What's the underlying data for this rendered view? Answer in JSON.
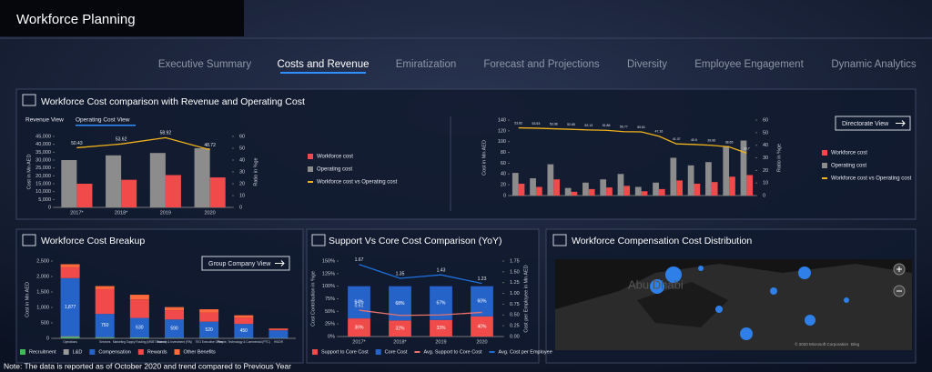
{
  "header": {
    "title": "Workforce Planning"
  },
  "tabs": {
    "items": [
      "Executive Summary",
      "Costs and Revenue",
      "Emiratization",
      "Forecast and Projections",
      "Diversity",
      "Employee Engagement",
      "Dynamic Analytics"
    ],
    "active": 1
  },
  "chart_data": [
    {
      "type": "combo",
      "title": "Workforce Cost comparison with Revenue and Operating Cost",
      "view_tabs": [
        "Revenue View",
        "Operating Cost View"
      ],
      "active_view": 1,
      "categories": [
        "2017*",
        "2018*",
        "2019",
        "2020"
      ],
      "y_label": "Cost in Mn AED",
      "y2_label": "Ratio in %ge",
      "ylim": [
        0,
        45000
      ],
      "yticks": [
        0,
        {
          "value": 5000,
          "label": "5,000"
        },
        {
          "value": 10000,
          "label": "10,000"
        },
        {
          "value": 15000,
          "label": "15,000"
        },
        {
          "value": 20000,
          "label": "20,000"
        },
        {
          "value": 25000,
          "label": "25,000"
        },
        {
          "value": 30000,
          "label": "30,000"
        },
        {
          "value": 35000,
          "label": "35,000"
        },
        {
          "value": 40000,
          "label": "40,000"
        },
        {
          "value": 45000,
          "label": "45,000"
        }
      ],
      "y2lim": [
        0,
        60
      ],
      "y2ticks": [
        0,
        10,
        20,
        30,
        40,
        50,
        60
      ],
      "legend": "right",
      "series": [
        {
          "name": "Workforce cost",
          "color": "#f04a4a",
          "values": [
            15000,
            17500,
            20500,
            19000
          ]
        },
        {
          "name": "Operating cost",
          "color": "#8c8c8c",
          "values": [
            30000,
            33000,
            34500,
            37500
          ]
        },
        {
          "name": "Workforce cost vs Operating cost",
          "color": "#f0b21a",
          "axis": "y2",
          "values": [
            50.43,
            53.62,
            58.92,
            48.72
          ]
        }
      ]
    },
    {
      "type": "combo",
      "button": "Directorate View",
      "categories": [
        null,
        null,
        null,
        null,
        null,
        null,
        null,
        null,
        null,
        null,
        null,
        null,
        null,
        null
      ],
      "y_label": "Cost in Mn AED",
      "y2_label": "Ratio in %ge",
      "ylim": [
        0,
        140
      ],
      "yticks": [
        0,
        20,
        40,
        60,
        80,
        100,
        120,
        140
      ],
      "y2lim": [
        0,
        60
      ],
      "y2ticks": [
        0,
        10,
        20,
        30,
        40,
        50,
        60
      ],
      "legend": "right",
      "series": [
        {
          "name": "Workforce cost",
          "color": "#f04a4a",
          "values": [
            22,
            16,
            30,
            7,
            12,
            15,
            18,
            8,
            12,
            28,
            22,
            25,
            35,
            38
          ]
        },
        {
          "name": "Operating cost",
          "color": "#8c8c8c",
          "values": [
            42,
            32,
            58,
            14,
            24,
            30,
            40,
            16,
            24,
            70,
            56,
            62,
            92,
            102
          ]
        },
        {
          "name": "Workforce cost vs Operating cost",
          "color": "#f0b21a",
          "axis": "y2",
          "values": [
            53.82,
            53.53,
            53.08,
            52.65,
            52.13,
            51.86,
            50.77,
            50.61,
            47.16,
            41.07,
            40.6,
            39.96,
            38.65,
            33.7
          ]
        }
      ]
    },
    {
      "type": "bar",
      "stacked": true,
      "title": "Workforce Cost Breakup",
      "button": "Group Company View",
      "categories": [
        "Operations",
        "Services",
        "Marketing Supply Routing (MSBT shared)",
        "Finance & Investment (FIN)",
        "TEO Executive Office",
        "People, Technology & Commercial (PTC)",
        "HS/DR"
      ],
      "y_label": "Cost in Mn AED",
      "ylim": [
        0,
        2500
      ],
      "yticks": [
        0,
        500,
        {
          "value": 1000,
          "label": "1,000"
        },
        {
          "value": 1500,
          "label": "1,500"
        },
        {
          "value": 2000,
          "label": "2,000"
        },
        {
          "value": 2500,
          "label": "2,500"
        }
      ],
      "legend": "bottom",
      "series": [
        {
          "name": "Recruitment",
          "color": "#3dbb5a",
          "values": [
            40,
            20,
            15,
            10,
            10,
            8,
            5
          ]
        },
        {
          "name": "L&D",
          "color": "#9a9a9a",
          "values": [
            30,
            20,
            15,
            10,
            10,
            8,
            5
          ]
        },
        {
          "name": "Compensation",
          "color": "#2563c9",
          "values": [
            1877,
            750,
            630,
            590,
            520,
            450,
            250
          ],
          "value_labels": [
            "1,877",
            "750",
            "630",
            "590",
            "520",
            "450",
            null
          ]
        },
        {
          "name": "Rewards",
          "color": "#f04a4a",
          "values": [
            350,
            800,
            600,
            300,
            300,
            200,
            40
          ]
        },
        {
          "name": "Other Benefits",
          "color": "#ff6a3d",
          "values": [
            100,
            100,
            150,
            100,
            100,
            80,
            20
          ]
        }
      ]
    },
    {
      "type": "combo",
      "stacked": true,
      "title": "Support Vs Core Cost Comparison (YoY)",
      "categories": [
        "2017*",
        "2018*",
        "2019",
        "2020"
      ],
      "y_label": "Cost Contribution in %ge",
      "y2_label": "Cost per Employee in Mn AED",
      "ylim": [
        0,
        150
      ],
      "yticks": [
        {
          "value": 0,
          "label": "0%"
        },
        {
          "value": 25,
          "label": "25%"
        },
        {
          "value": 50,
          "label": "50%"
        },
        {
          "value": 75,
          "label": "75%"
        },
        {
          "value": 100,
          "label": "100%"
        },
        {
          "value": 125,
          "label": "125%"
        },
        {
          "value": 150,
          "label": "150%"
        }
      ],
      "y2lim": [
        0,
        1.75
      ],
      "y2ticks": [
        {
          "value": 0,
          "label": "0.00"
        },
        0.25,
        {
          "value": 0.5,
          "label": "0.50"
        },
        0.75,
        {
          "value": 1,
          "label": "1.00"
        },
        1.25,
        {
          "value": 1.5,
          "label": "1.50"
        },
        1.75
      ],
      "legend": "bottom",
      "series": [
        {
          "name": "Support to Core Cost",
          "color": "#f04a4a",
          "values": [
            36,
            32,
            33,
            40
          ],
          "value_labels": [
            "36%",
            "32%",
            "33%",
            "40%"
          ]
        },
        {
          "name": "Core Cost",
          "color": "#2563c9",
          "values": [
            64,
            68,
            67,
            60
          ],
          "value_labels": [
            "64%",
            "68%",
            "67%",
            "60%"
          ]
        },
        {
          "name": "Avg. Support to Core Cost",
          "color": "#e8736b",
          "axis": "y2",
          "values": [
            0.61,
            0.49,
            0.5,
            0.56
          ],
          "value_labels": [
            "0.61",
            null,
            null,
            null
          ]
        },
        {
          "name": "Avg. Cost per Employee",
          "color": "#1e6fd9",
          "axis": "y2",
          "values": [
            1.67,
            1.35,
            1.43,
            1.23
          ]
        }
      ]
    }
  ],
  "map": {
    "title": "Workforce Compensation Cost Distribution",
    "place": "Abu Dhabi",
    "attribution": "© 2020 Microsoft Corporation",
    "provider": "Bing"
  },
  "footer": {
    "note": "Note: The data is reported as of October 2020 and trend compared to Previous Year"
  }
}
